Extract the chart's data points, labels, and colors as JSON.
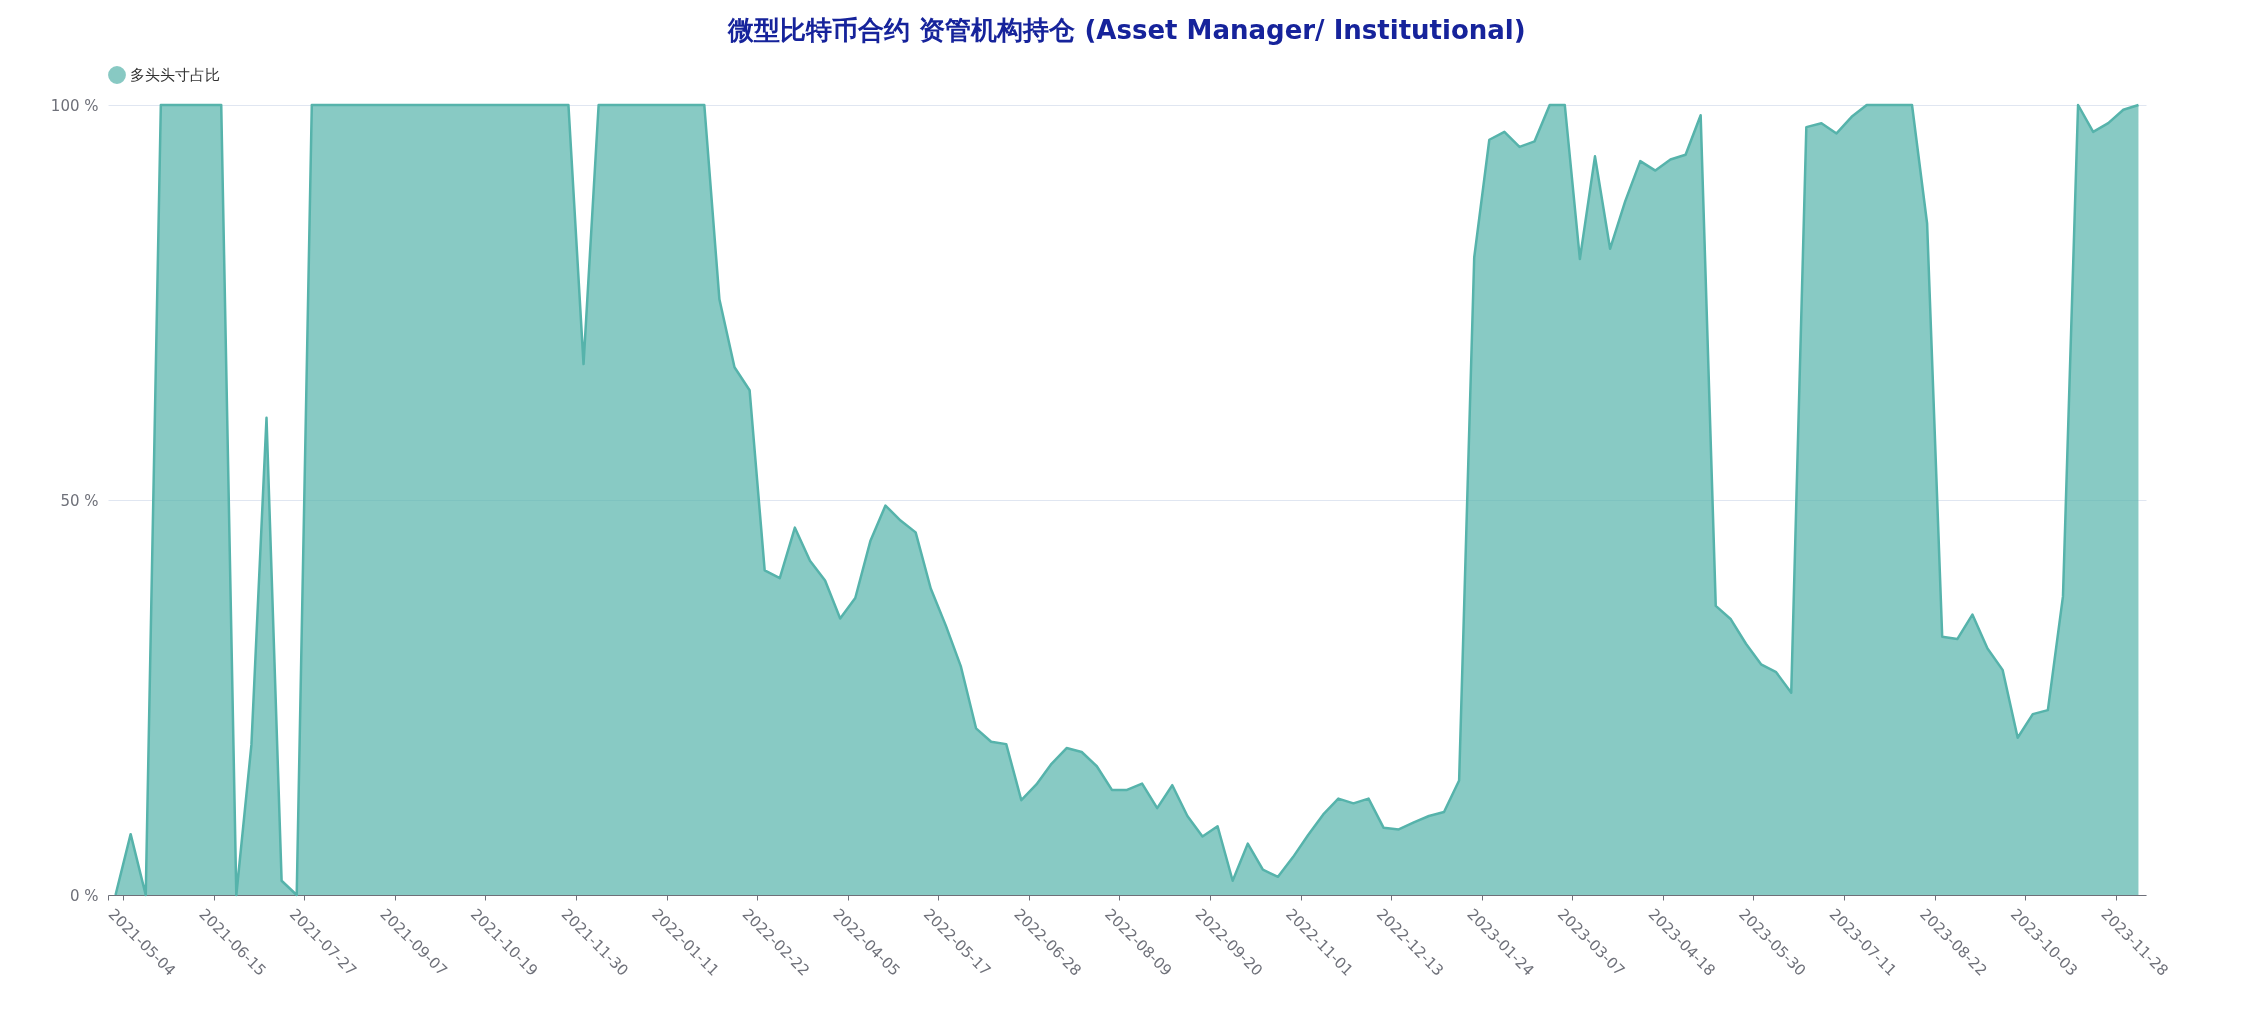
{
  "chart_data": {
    "type": "area",
    "title": "微型比特币合约 资管机构持仓 (Asset Manager/ Institutional)",
    "categories": [
      "2021-05-04",
      null,
      null,
      null,
      null,
      null,
      "2021-06-15",
      null,
      null,
      null,
      null,
      null,
      "2021-07-27",
      null,
      null,
      null,
      null,
      null,
      "2021-09-07",
      null,
      null,
      null,
      null,
      null,
      "2021-10-19",
      null,
      null,
      null,
      null,
      null,
      "2021-11-30",
      null,
      null,
      null,
      null,
      null,
      "2022-01-11",
      null,
      null,
      null,
      null,
      null,
      "2022-02-22",
      null,
      null,
      null,
      null,
      null,
      "2022-04-05",
      null,
      null,
      null,
      null,
      null,
      "2022-05-17",
      null,
      null,
      null,
      null,
      null,
      "2022-06-28",
      null,
      null,
      null,
      null,
      null,
      "2022-08-09",
      null,
      null,
      null,
      null,
      null,
      "2022-09-20",
      null,
      null,
      null,
      null,
      null,
      "2022-11-01",
      null,
      null,
      null,
      null,
      null,
      "2022-12-13",
      null,
      null,
      null,
      null,
      null,
      "2023-01-24",
      null,
      null,
      null,
      null,
      null,
      "2023-03-07",
      null,
      null,
      null,
      null,
      null,
      "2023-04-18",
      null,
      null,
      null,
      null,
      null,
      "2023-05-30",
      null,
      null,
      null,
      null,
      null,
      "2023-07-11",
      null,
      null,
      null,
      null,
      null,
      "2023-08-22",
      null,
      null,
      null,
      null,
      null,
      "2023-10-03",
      null,
      null,
      null,
      null,
      null,
      "2023-11-28",
      null,
      null
    ],
    "series": [
      {
        "name": "多头头寸占比",
        "color": "#56b3ab",
        "values": [
          0,
          7.7,
          0,
          100,
          100,
          100,
          100,
          100,
          0,
          19,
          60.4,
          1.8,
          0,
          100,
          100,
          100,
          100,
          100,
          100,
          100,
          100,
          100,
          100,
          100,
          100,
          100,
          100,
          100,
          100,
          100,
          100,
          67.2,
          100,
          100,
          100,
          100,
          100,
          100,
          100,
          100,
          75.4,
          66.8,
          63.9,
          41.1,
          40.1,
          46.5,
          42.3,
          39.8,
          35,
          37.6,
          44.8,
          49.3,
          47.4,
          45.9,
          38.8,
          34.1,
          28.9,
          21.1,
          19.4,
          19.1,
          12,
          14,
          16.6,
          18.6,
          18.1,
          16.3,
          13.3,
          13.3,
          14.1,
          11,
          13.9,
          10,
          7.4,
          8.7,
          1.8,
          6.5,
          3.2,
          2.3,
          4.8,
          7.6,
          10.2,
          12.2,
          11.6,
          12.2,
          8.5,
          8.3,
          9.2,
          10,
          10.5,
          14.5,
          80.7,
          95.6,
          96.6,
          94.7,
          95.4,
          100,
          100,
          80.5,
          93.5,
          81.8,
          87.8,
          92.9,
          91.7,
          93.1,
          93.7,
          98.7,
          36.6,
          34.9,
          31.8,
          29.2,
          28.2,
          25.6,
          97.2,
          97.7,
          96.4,
          98.5,
          100,
          100,
          100,
          100,
          85,
          32.7,
          32.4,
          35.5,
          31.2,
          28.5,
          19.9,
          22.9,
          23.4,
          37.8,
          100,
          96.6,
          97.7,
          99.4,
          100
        ]
      }
    ],
    "ylim": [
      0,
      100
    ],
    "yticks": [
      {
        "value": 0,
        "label": "0 %"
      },
      {
        "value": 50,
        "label": "50 %"
      },
      {
        "value": 100,
        "label": "100 %"
      }
    ],
    "grid": "y",
    "legend": "top"
  }
}
